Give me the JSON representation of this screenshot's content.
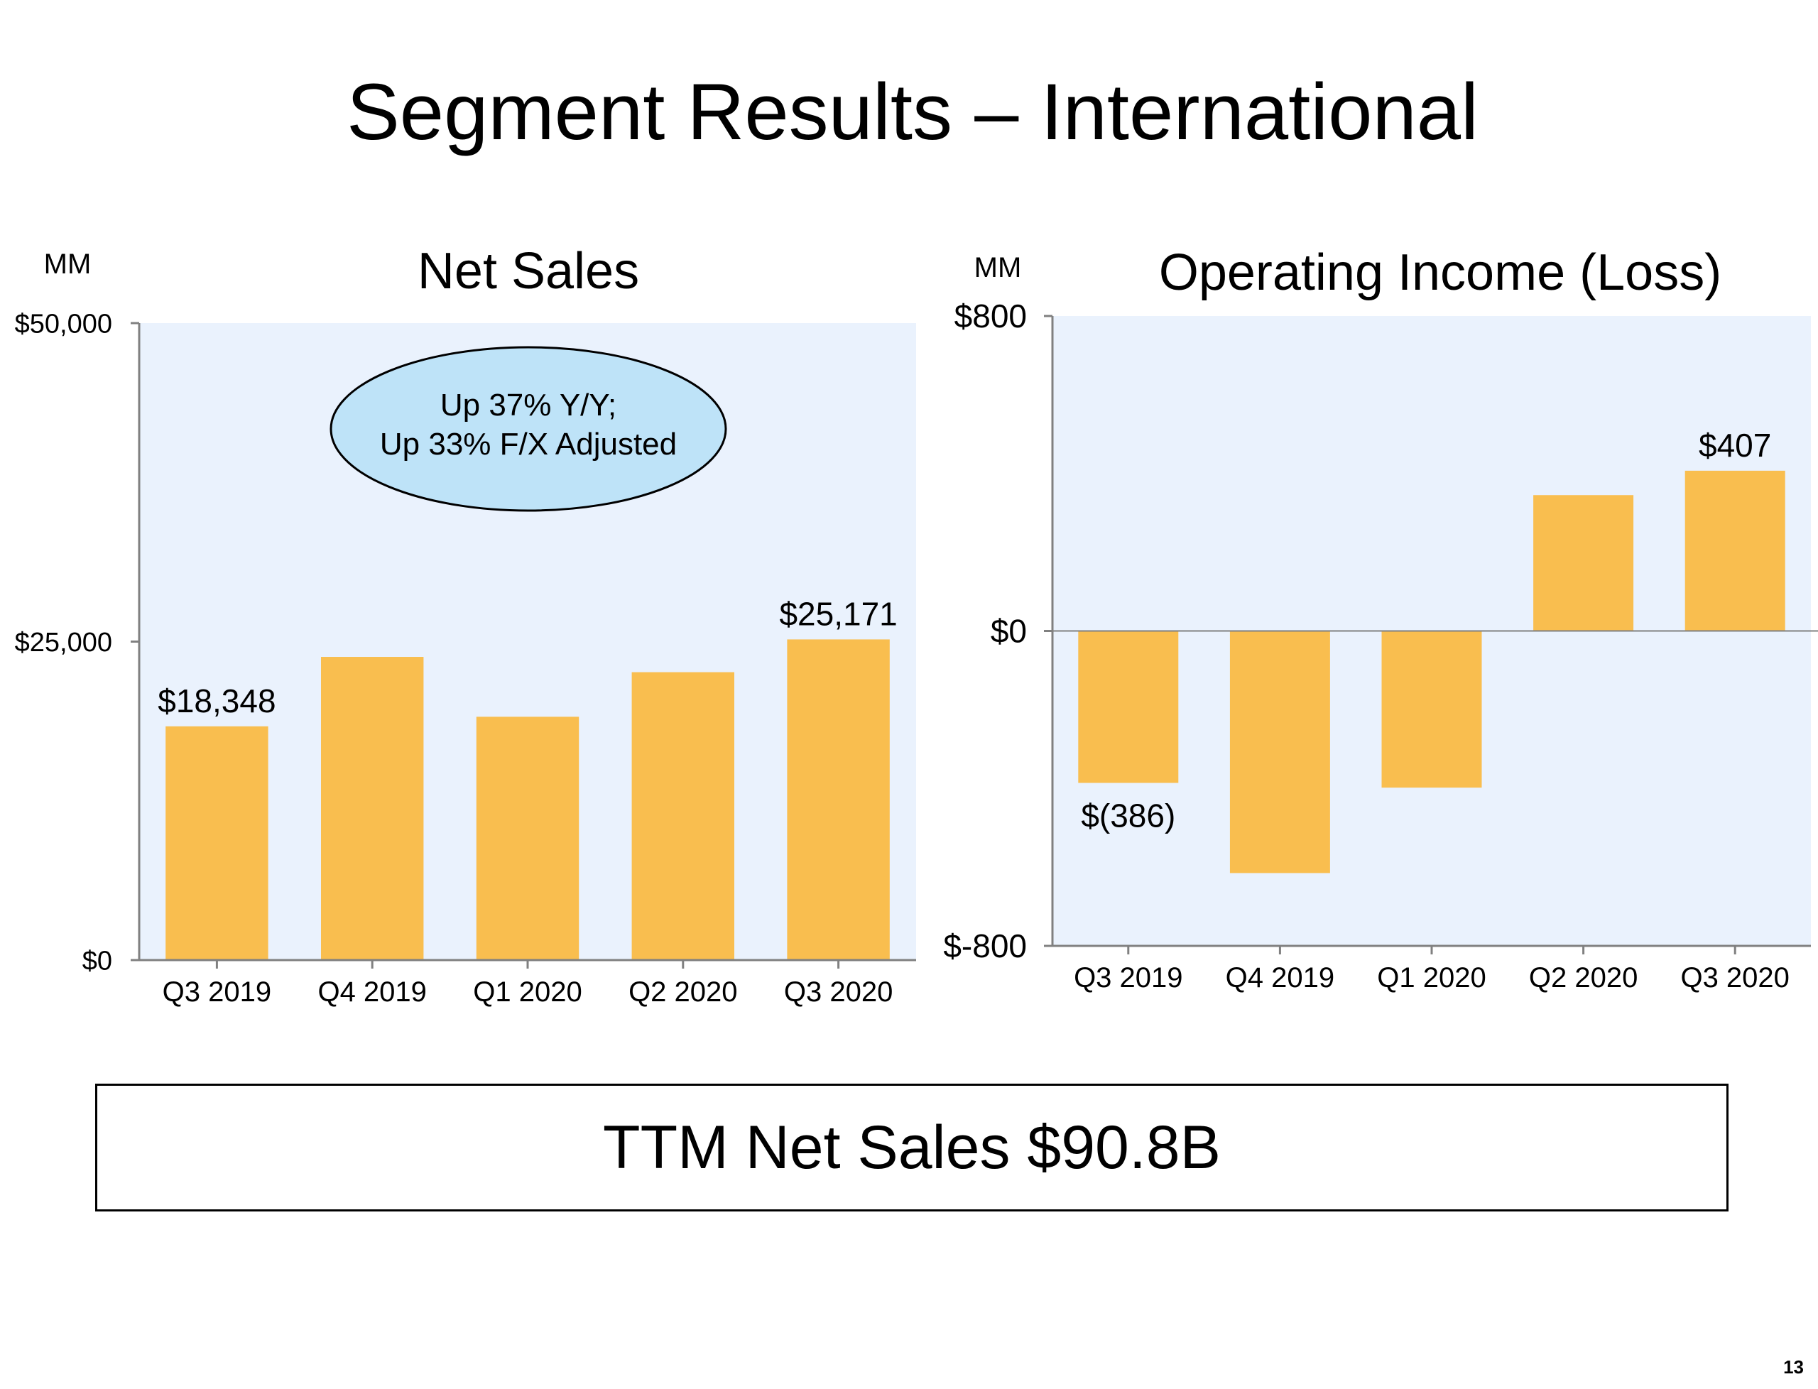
{
  "slide": {
    "title": "Segment Results – International",
    "ttm_text": "TTM Net Sales $90.8B",
    "page_number": "13"
  },
  "colors": {
    "bar": "#F9BE4F",
    "plot_background": "#EAF2FD",
    "callout_fill": "#BEE3F8",
    "axis": "#808080"
  },
  "chart_data": [
    {
      "type": "bar",
      "title": "Net Sales",
      "unit_label": "MM",
      "categories": [
        "Q3 2019",
        "Q4 2019",
        "Q1 2020",
        "Q2 2020",
        "Q3 2020"
      ],
      "values": [
        18348,
        23800,
        19100,
        22600,
        25171
      ],
      "ylim": [
        0,
        50000
      ],
      "yticks": [
        0,
        25000,
        50000
      ],
      "ytick_labels": [
        "$0",
        "$25,000",
        "$50,000"
      ],
      "data_labels": [
        {
          "index": 0,
          "text": "$18,348"
        },
        {
          "index": 4,
          "text": "$25,171"
        }
      ],
      "callout": {
        "line1": "Up 37% Y/Y;",
        "line2": "Up 33% F/X Adjusted"
      },
      "grid": false
    },
    {
      "type": "bar",
      "title": "Operating Income (Loss)",
      "unit_label": "MM",
      "categories": [
        "Q3 2019",
        "Q4 2019",
        "Q1 2020",
        "Q2 2020",
        "Q3 2020"
      ],
      "values": [
        -386,
        -615,
        -398,
        345,
        407
      ],
      "ylim": [
        -800,
        800
      ],
      "yticks": [
        -800,
        0,
        800
      ],
      "ytick_labels": [
        "$-800",
        "$0",
        "$800"
      ],
      "data_labels": [
        {
          "index": 0,
          "text": "$(386)"
        },
        {
          "index": 4,
          "text": "$407"
        }
      ],
      "grid": false
    }
  ]
}
